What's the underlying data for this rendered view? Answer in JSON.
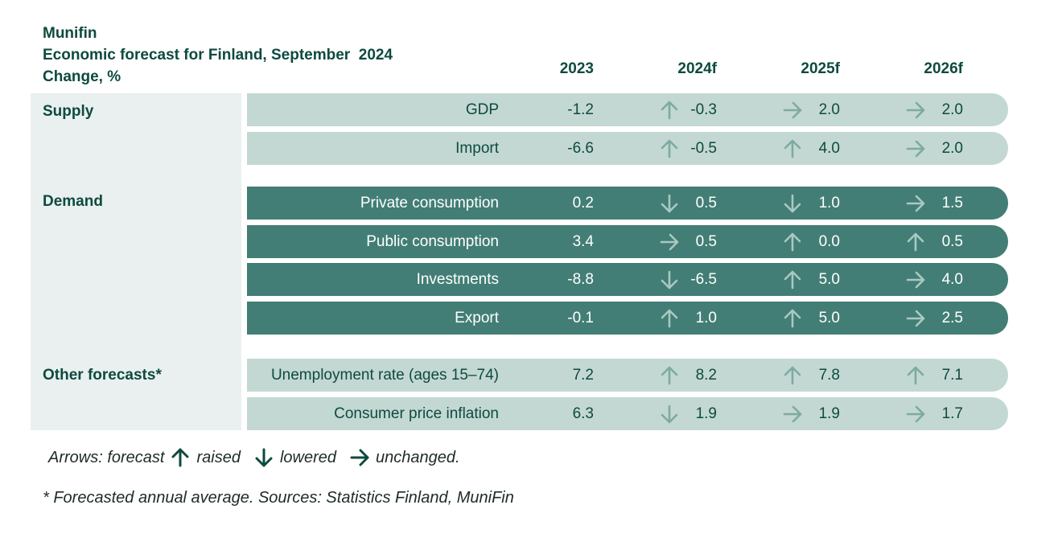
{
  "header": {
    "line1": "Munifin",
    "line2": "Economic forecast for Finland, September  2024",
    "line3": "Change, %"
  },
  "colors": {
    "dark_green": "#0e4a3f",
    "light_row": "#c3d8d3",
    "dark_row": "#427e75",
    "category_bg": "#e9f0ef"
  },
  "chart_data": {
    "type": "table",
    "title": "Economic forecast for Finland, September  2024",
    "columns": [
      "2023",
      "2024f",
      "2025f",
      "2026f"
    ],
    "groups": [
      {
        "name": "Supply",
        "style": "light",
        "rows": [
          {
            "label": "GDP",
            "values": [
              "-1.2",
              "-0.3",
              "2.0",
              "2.0"
            ],
            "arrows": [
              "up",
              "right",
              "right"
            ]
          },
          {
            "label": "Import",
            "values": [
              "-6.6",
              "-0.5",
              "4.0",
              "2.0"
            ],
            "arrows": [
              "up",
              "up",
              "right"
            ]
          }
        ]
      },
      {
        "name": "Demand",
        "style": "dark",
        "rows": [
          {
            "label": "Private consumption",
            "values": [
              "0.2",
              "0.5",
              "1.0",
              "1.5"
            ],
            "arrows": [
              "down",
              "down",
              "right"
            ]
          },
          {
            "label": "Public consumption",
            "values": [
              "3.4",
              "0.5",
              "0.0",
              "0.5"
            ],
            "arrows": [
              "right",
              "up",
              "up"
            ]
          },
          {
            "label": "Investments",
            "values": [
              "-8.8",
              "-6.5",
              "5.0",
              "4.0"
            ],
            "arrows": [
              "down",
              "up",
              "right"
            ]
          },
          {
            "label": "Export",
            "values": [
              "-0.1",
              "1.0",
              "5.0",
              "2.5"
            ],
            "arrows": [
              "up",
              "up",
              "right"
            ]
          }
        ]
      },
      {
        "name": "Other forecasts*",
        "style": "light",
        "rows": [
          {
            "label": "Unemployment rate (ages 15–74)",
            "values": [
              "7.2",
              "8.2",
              "7.8",
              "7.1"
            ],
            "arrows": [
              "up",
              "up",
              "up"
            ]
          },
          {
            "label": "Consumer price inflation",
            "values": [
              "6.3",
              "1.9",
              "1.9",
              "1.7"
            ],
            "arrows": [
              "down",
              "right",
              "right"
            ]
          }
        ]
      }
    ]
  },
  "legend": {
    "prefix": "Arrows: forecast",
    "raised": "raised",
    "lowered": "lowered",
    "unchanged": "unchanged."
  },
  "footnote": "* Forecasted annual average. Sources: Statistics Finland, MuniFin"
}
